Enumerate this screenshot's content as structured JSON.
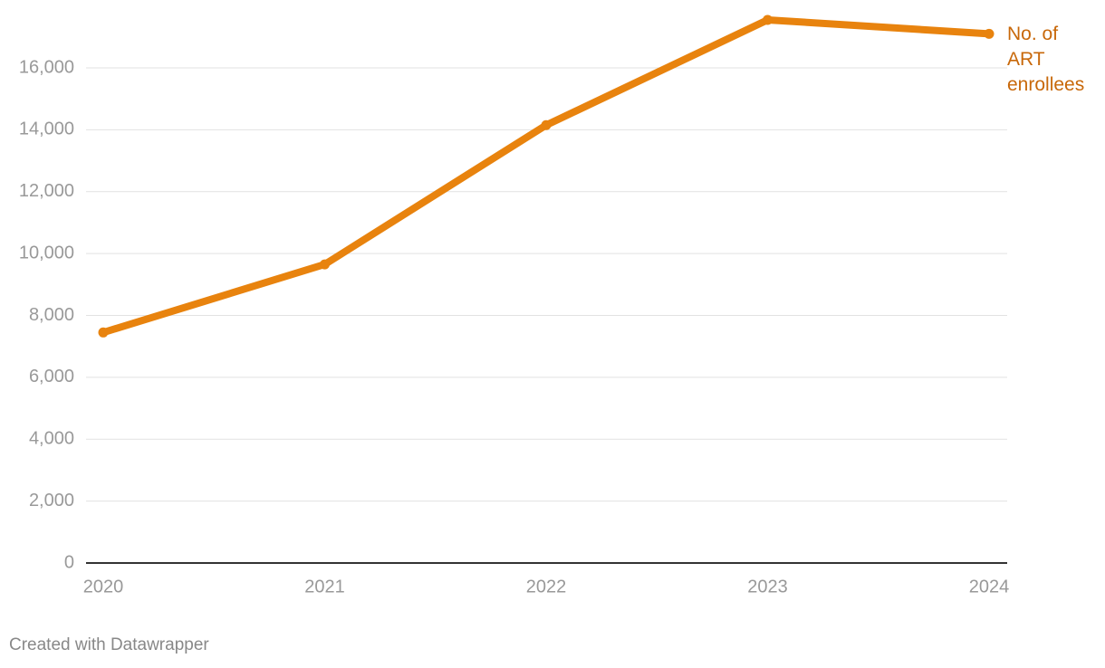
{
  "chart_data": {
    "type": "line",
    "x": [
      2020,
      2021,
      2022,
      2023,
      2024
    ],
    "series": [
      {
        "name": "No. of ART enrollees",
        "color": "#e8830e",
        "values": [
          7450,
          9650,
          14150,
          17550,
          17100
        ]
      }
    ],
    "xlim": [
      2020,
      2024
    ],
    "xticks": [
      2020,
      2021,
      2022,
      2023,
      2024
    ],
    "ylim": [
      0,
      17550
    ],
    "yticks": [
      0,
      {
        "value": 2000,
        "label": "2,000"
      },
      {
        "value": 4000,
        "label": "4,000"
      },
      {
        "value": 6000,
        "label": "6,000"
      },
      {
        "value": 8000,
        "label": "8,000"
      },
      {
        "value": 10000,
        "label": "10,000"
      },
      {
        "value": 12000,
        "label": "12,000"
      },
      {
        "value": 14000,
        "label": "14,000"
      },
      {
        "value": 16000,
        "label": "16,000"
      }
    ],
    "grid": true,
    "credit": "Created with Datawrapper"
  }
}
